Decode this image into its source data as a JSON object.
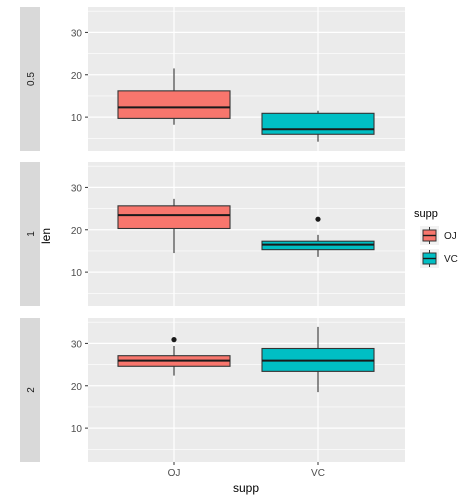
{
  "chart_data": {
    "type": "box",
    "xlabel": "supp",
    "ylabel": "len",
    "categories": [
      "OJ",
      "VC"
    ],
    "y_ticks": [
      10,
      20,
      30
    ],
    "ylim": [
      2,
      36
    ],
    "grid": true,
    "facet_position": "left",
    "legend": {
      "title": "supp",
      "position": "right",
      "entries": [
        {
          "label": "OJ",
          "color": "#F8766D"
        },
        {
          "label": "VC",
          "color": "#00BFC4"
        }
      ]
    },
    "panels": [
      {
        "label": "0.5",
        "boxes": [
          {
            "category": "OJ",
            "min": 8.2,
            "q1": 9.7,
            "median": 12.3,
            "q3": 16.2,
            "max": 21.5,
            "outliers": []
          },
          {
            "category": "VC",
            "min": 4.2,
            "q1": 5.95,
            "median": 7.15,
            "q3": 10.9,
            "max": 11.5,
            "outliers": []
          }
        ]
      },
      {
        "label": "1",
        "boxes": [
          {
            "category": "OJ",
            "min": 14.5,
            "q1": 20.3,
            "median": 23.45,
            "q3": 25.65,
            "max": 27.3,
            "outliers": []
          },
          {
            "category": "VC",
            "min": 13.6,
            "q1": 15.3,
            "median": 16.5,
            "q3": 17.3,
            "max": 18.8,
            "outliers": [
              22.5
            ]
          }
        ]
      },
      {
        "label": "2",
        "boxes": [
          {
            "category": "OJ",
            "min": 22.4,
            "q1": 24.6,
            "median": 25.95,
            "q3": 27.1,
            "max": 29.4,
            "outliers": [
              30.9
            ]
          },
          {
            "category": "VC",
            "min": 18.5,
            "q1": 23.4,
            "median": 25.95,
            "q3": 28.8,
            "max": 33.9,
            "outliers": []
          }
        ]
      }
    ],
    "colors": {
      "OJ": "#F8766D",
      "VC": "#00BFC4",
      "panel_bg": "#EBEBEB",
      "strip_bg": "#D9D9D9",
      "grid": "#FFFFFF",
      "text": "#4D4D4D",
      "title_text": "#000000"
    }
  }
}
